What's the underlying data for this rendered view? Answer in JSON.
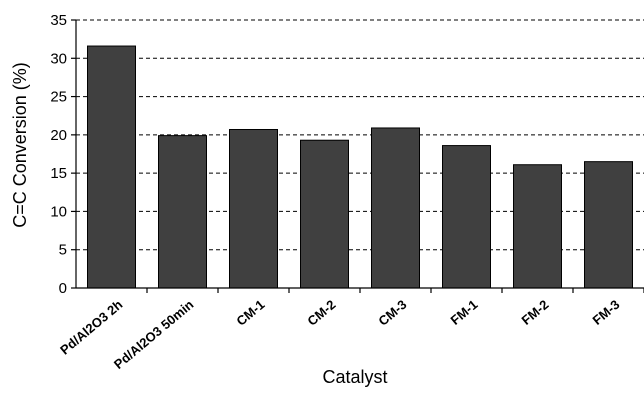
{
  "chart_data": {
    "type": "bar",
    "title": "",
    "xlabel": "Catalyst",
    "ylabel": "C=C Conversion (%)",
    "ylim": [
      0,
      35
    ],
    "yticks": [
      0,
      5,
      10,
      15,
      20,
      25,
      30,
      35
    ],
    "grid": "horizontal dashed",
    "categories": [
      "Pd/Al2O3 2h",
      "Pd/Al2O3 50min",
      "CM-1",
      "CM-2",
      "CM-3",
      "FM-1",
      "FM-2",
      "FM-3"
    ],
    "values": [
      31.6,
      19.9,
      20.7,
      19.3,
      20.9,
      18.6,
      16.1,
      16.5
    ],
    "bar_color": "#404040"
  }
}
